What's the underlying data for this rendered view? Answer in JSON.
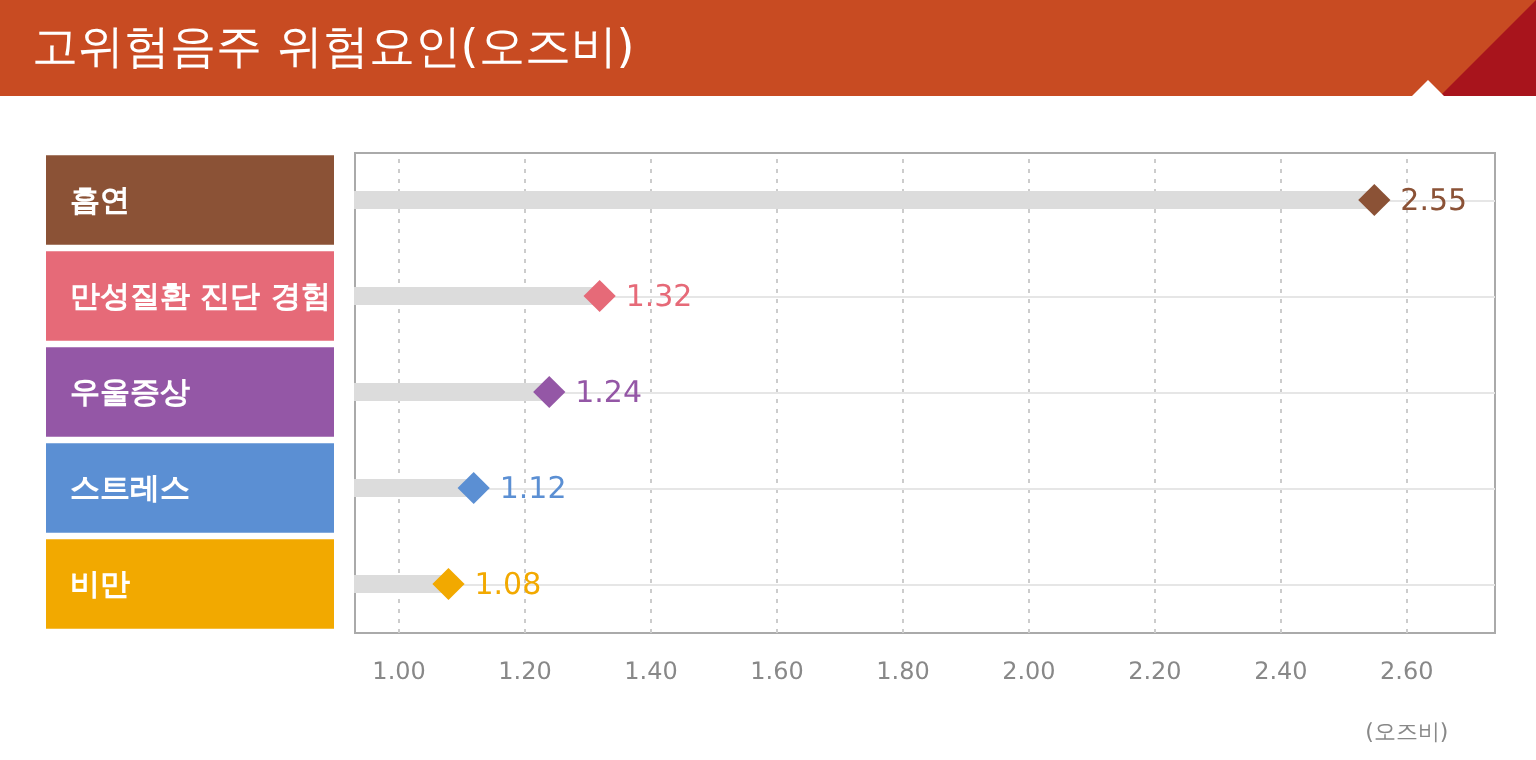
{
  "chart_data": {
    "type": "lollipop",
    "title": "고위험음주 위험요인(오즈비)",
    "xlabel": "(오즈비)",
    "orientation": "horizontal",
    "categories": [
      "흡연",
      "만성질환 진단 경험",
      "우울증상",
      "스트레스",
      "비만"
    ],
    "values": [
      2.55,
      1.32,
      1.24,
      1.12,
      1.08
    ],
    "colors": [
      "#8b5236",
      "#e66a78",
      "#9457a6",
      "#5b8fd3",
      "#f2a900"
    ],
    "xlim": [
      0.93,
      2.74
    ],
    "xticks": [
      {
        "value": 1,
        "label": "1.00"
      },
      {
        "value": 1.2,
        "label": "1.20"
      },
      {
        "value": 1.4,
        "label": "1.40"
      },
      {
        "value": 1.6,
        "label": "1.60"
      },
      {
        "value": 1.8,
        "label": "1.80"
      },
      {
        "value": 2,
        "label": "2.00"
      },
      {
        "value": 2.2,
        "label": "2.20"
      },
      {
        "value": 2.4,
        "label": "2.40"
      },
      {
        "value": 2.6,
        "label": "2.60"
      }
    ],
    "marker": "diamond",
    "grid": true,
    "data_labels": true
  }
}
